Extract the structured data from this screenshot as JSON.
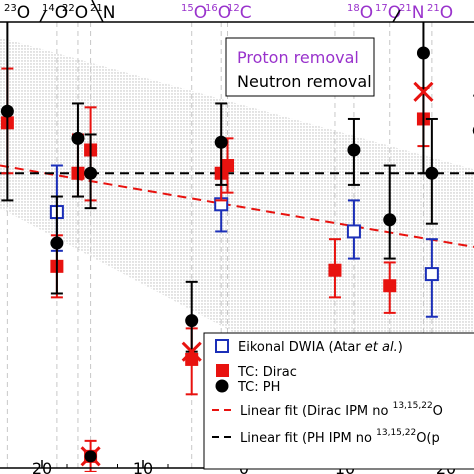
{
  "chart_data": {
    "type": "scatter",
    "top_labels": [
      {
        "sup": "23",
        "base": "O",
        "x": 27.5
      },
      {
        "sup": "14",
        "base": "O",
        "x": 19.5
      },
      {
        "sup": "22",
        "base": "O",
        "x": 17.5
      },
      {
        "sup": "21",
        "base": "N",
        "x": 14.5
      },
      {
        "sup": "15",
        "base": "O",
        "x": 7.5
      },
      {
        "sup": "16",
        "base": "O",
        "x": 5.0
      },
      {
        "sup": "12",
        "base": "C",
        "x": 2.5
      },
      {
        "sup": "18",
        "base": "O",
        "x": -5.0
      },
      {
        "sup": "17",
        "base": "O",
        "x": -7.5
      },
      {
        "sup": "21",
        "base": "N",
        "x": -10.0
      },
      {
        "sup": "21",
        "base": "O",
        "x": -12.5
      }
    ],
    "x_ticks": [
      "20",
      "10",
      "0",
      "10",
      "20"
    ],
    "x_tick_values": [
      -20,
      -10,
      0,
      10,
      20
    ],
    "xlim": [
      -24,
      21
    ],
    "ylim": [
      0.1,
      1.25
    ],
    "reference_line_y": 0.86,
    "legend_proton_neutron": {
      "proton": "Proton removal",
      "neutron": "Neutron removal"
    },
    "legend": {
      "eikonal": "Eikonal DWIA (Atar ",
      "eikonal_italic": "et al.",
      "eikonal_end": ")",
      "dirac": "TC: Dirac",
      "ph": "TC: PH",
      "red_fit": "Linear fit (Dirac IPM no ",
      "red_fit_sup": "13,15,22",
      "red_fit_end": "O",
      "black_fit": "Linear fit (PH IPM no ",
      "black_fit_sup": "13,15,22",
      "black_fit_end": "O(p"
    },
    "colors": {
      "proton": "#9932cc",
      "red": "#e8120f",
      "blue": "#1b2fb8",
      "black": "#000000",
      "band": "#c8c8c8"
    },
    "series": [
      {
        "type": "eikonal",
        "points": [
          {
            "x": -18.6,
            "y": 0.76,
            "lo": 0.66,
            "hi": 0.88
          },
          {
            "x": -3.0,
            "y": 0.78,
            "lo": 0.71,
            "hi": 0.85
          },
          {
            "x": 9.6,
            "y": 0.71,
            "lo": 0.64,
            "hi": 0.79
          },
          {
            "x": 17.0,
            "y": 0.6,
            "lo": 0.49,
            "hi": 0.69
          }
        ]
      },
      {
        "type": "dirac",
        "points": [
          {
            "x": -23.3,
            "y": 0.99,
            "lo": 0.86,
            "hi": 1.13
          },
          {
            "x": -18.6,
            "y": 0.62,
            "lo": 0.54,
            "hi": 0.7
          },
          {
            "x": -16.6,
            "y": 0.86,
            "lo": 0.8,
            "hi": 0.96
          },
          {
            "x": -15.4,
            "y": 0.92,
            "lo": 0.79,
            "hi": 1.03
          },
          {
            "x": -5.8,
            "y": 0.38,
            "lo": 0.29,
            "hi": 0.46
          },
          {
            "x": -3.0,
            "y": 0.86,
            "lo": 0.79,
            "hi": 0.94
          },
          {
            "x": -2.4,
            "y": 0.88,
            "lo": 0.81,
            "hi": 0.95
          },
          {
            "x": 7.8,
            "y": 0.61,
            "lo": 0.54,
            "hi": 0.69
          },
          {
            "x": 13.0,
            "y": 0.57,
            "lo": 0.5,
            "hi": 0.63
          },
          {
            "x": 16.2,
            "y": 1.0,
            "lo": 0.93,
            "hi": 1.08
          }
        ]
      },
      {
        "type": "ph",
        "points": [
          {
            "x": -23.3,
            "y": 1.02,
            "lo": 0.79,
            "hi": 1.29
          },
          {
            "x": -18.6,
            "y": 0.68,
            "lo": 0.55,
            "hi": 0.8
          },
          {
            "x": -16.6,
            "y": 0.95,
            "lo": 0.8,
            "hi": 1.04
          },
          {
            "x": -15.4,
            "y": 0.86,
            "lo": 0.77,
            "hi": 0.96
          },
          {
            "x": -5.8,
            "y": 0.48,
            "lo": 0.4,
            "hi": 0.58
          },
          {
            "x": -3.0,
            "y": 0.94,
            "lo": 0.83,
            "hi": 1.04
          },
          {
            "x": 9.6,
            "y": 0.92,
            "lo": 0.83,
            "hi": 1.0
          },
          {
            "x": 13.0,
            "y": 0.74,
            "lo": 0.64,
            "hi": 0.88
          },
          {
            "x": 16.2,
            "y": 1.17,
            "lo": 0.86,
            "hi": 1.27
          },
          {
            "x": 17.0,
            "y": 0.86,
            "lo": 0.73,
            "hi": 1.0
          },
          {
            "x": 21.5,
            "y": 0.97,
            "lo": 0.86,
            "hi": 1.06
          }
        ]
      },
      {
        "type": "cross",
        "points": [
          {
            "x": -15.4,
            "y": 0.13
          },
          {
            "x": -5.8,
            "y": 0.4
          },
          {
            "x": 16.2,
            "y": 1.07
          }
        ]
      },
      {
        "type": "dirac_low",
        "points": [
          {
            "x": -15.4,
            "y": 0.13,
            "lo": 0.09,
            "hi": 0.17
          }
        ]
      }
    ],
    "fits": [
      {
        "name": "red_fit",
        "x0": -24,
        "y0": 0.88,
        "x1": 21,
        "y1": 0.67
      },
      {
        "name": "black_fit",
        "x0": -24,
        "y0": 0.86,
        "x1": 21,
        "y1": 0.86
      }
    ]
  }
}
